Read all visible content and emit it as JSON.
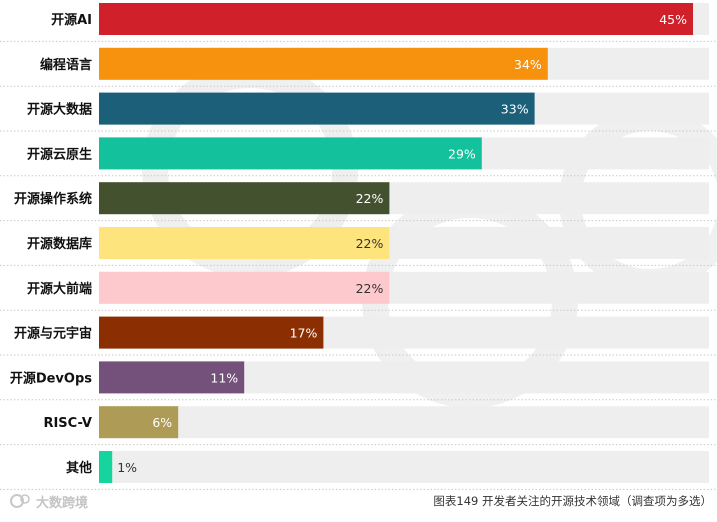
{
  "chart_data": {
    "type": "bar",
    "orientation": "horizontal",
    "categories": [
      "开源AI",
      "编程语言",
      "开源大数据",
      "开源云原生",
      "开源操作系统",
      "开源数据库",
      "开源大前端",
      "开源与元宇宙",
      "开源DevOps",
      "RISC-V",
      "其他"
    ],
    "values": [
      45,
      34,
      33,
      29,
      22,
      22,
      22,
      17,
      11,
      6,
      1
    ],
    "value_labels": [
      "45%",
      "34%",
      "33%",
      "29%",
      "22%",
      "22%",
      "22%",
      "17%",
      "11%",
      "6%",
      "1%"
    ],
    "colors": [
      "#d0212a",
      "#f7920e",
      "#1b5f79",
      "#13c19c",
      "#44512f",
      "#fde47c",
      "#fec9cd",
      "#8b2e02",
      "#73517a",
      "#ae9b56",
      "#16d49e"
    ],
    "label_colors": [
      "#ffffff",
      "#ffffff",
      "#ffffff",
      "#ffffff",
      "#ffffff",
      "#333333",
      "#333333",
      "#ffffff",
      "#ffffff",
      "#ffffff",
      "#333333"
    ],
    "xlim": [
      0,
      45
    ],
    "track_color": "#eeeeee",
    "caption": "图表149 开发者关注的开源技术领域（调查项为多选）"
  },
  "watermark": {
    "logo_icon": "csdn-logo-icon",
    "text": "大数跨境"
  }
}
